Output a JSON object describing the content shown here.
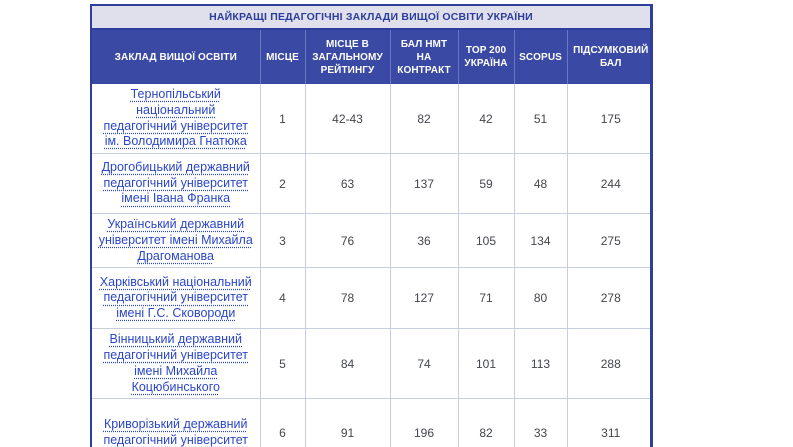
{
  "title": "НАЙКРАЩІ ПЕДАГОГІЧНІ ЗАКЛАДИ ВИЩОЇ ОСВІТИ УКРАЇНИ",
  "columns": {
    "institution": "ЗАКЛАД ВИЩОЇ ОСВІТИ",
    "place": "МІСЦЕ",
    "overall_rank": "МІСЦЕ В ЗАГАЛЬНОМУ РЕЙТИНГУ",
    "nmt_contract": "БАЛ НМТ НА КОНТРАКТ",
    "top200": "TOP 200 УКРАЇНА",
    "scopus": "SCOPUS",
    "total": "ПІДСУМКОВИЙ БАЛ"
  },
  "rows": [
    {
      "institution": "Тернопільський національний педагогічний університет ім. Володимира Гнатюка",
      "place": "1",
      "overall_rank": "42-43",
      "nmt_contract": "82",
      "top200": "42",
      "scopus": "51",
      "total": "175"
    },
    {
      "institution": "Дрогобицький державний педагогічний університет імені Івана Франка",
      "place": "2",
      "overall_rank": "63",
      "nmt_contract": "137",
      "top200": "59",
      "scopus": "48",
      "total": "244"
    },
    {
      "institution": "Український державний університет імені Михайла Драгоманова",
      "place": "3",
      "overall_rank": "76",
      "nmt_contract": "36",
      "top200": "105",
      "scopus": "134",
      "total": "275"
    },
    {
      "institution": "Харківський національний педагогічний університет імені Г.С. Сковороди",
      "place": "4",
      "overall_rank": "78",
      "nmt_contract": "127",
      "top200": "71",
      "scopus": "80",
      "total": "278"
    },
    {
      "institution": "Вінницький державний педагогічний університет імені Михайла Коцюбинського",
      "place": "5",
      "overall_rank": "84",
      "nmt_contract": "74",
      "top200": "101",
      "scopus": "113",
      "total": "288"
    },
    {
      "institution": "Криворізький державний педагогічний університет",
      "place": "6",
      "overall_rank": "91",
      "nmt_contract": "196",
      "top200": "82",
      "scopus": "33",
      "total": "311"
    }
  ],
  "colors": {
    "header_bg": "#3a49a4",
    "title_bg": "#dfe0ec",
    "accent_border": "#2e3e9d",
    "cell_border": "#c9cede",
    "link": "#2b46c8",
    "value_text": "#43464b"
  }
}
